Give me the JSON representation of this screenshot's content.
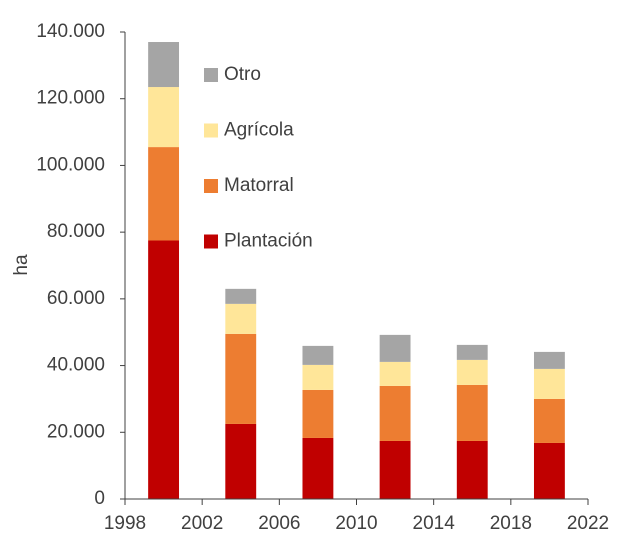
{
  "chart_data": {
    "type": "stacked-bar",
    "ylabel": "ha",
    "x": [
      2000,
      2004,
      2008,
      2012,
      2016,
      2020
    ],
    "series": [
      {
        "name": "Plantación",
        "color": "#c00000",
        "values": [
          77500,
          22500,
          18300,
          17400,
          17400,
          16800
        ]
      },
      {
        "name": "Matorral",
        "color": "#ed7d31",
        "values": [
          28000,
          27000,
          14400,
          16500,
          16800,
          13200
        ]
      },
      {
        "name": "Agrícola",
        "color": "#ffe699",
        "values": [
          18000,
          9000,
          7500,
          7200,
          7500,
          9000
        ]
      },
      {
        "name": "Otro",
        "color": "#a5a5a5",
        "values": [
          13500,
          4500,
          5700,
          8100,
          4500,
          5100
        ]
      }
    ],
    "xlim": [
      1998,
      2022
    ],
    "xticks": [
      1998,
      2002,
      2006,
      2010,
      2014,
      2018,
      2022
    ],
    "ylim": [
      0,
      140000
    ],
    "yticks": [
      0,
      {
        "value": 20000,
        "label": "20.000"
      },
      {
        "value": 40000,
        "label": "40.000"
      },
      {
        "value": 60000,
        "label": "60.000"
      },
      {
        "value": 80000,
        "label": "80.000"
      },
      {
        "value": 100000,
        "label": "100.000"
      },
      {
        "value": 120000,
        "label": "120.000"
      },
      {
        "value": 140000,
        "label": "140.000"
      }
    ],
    "bar_width": 1.6,
    "grid": false
  }
}
